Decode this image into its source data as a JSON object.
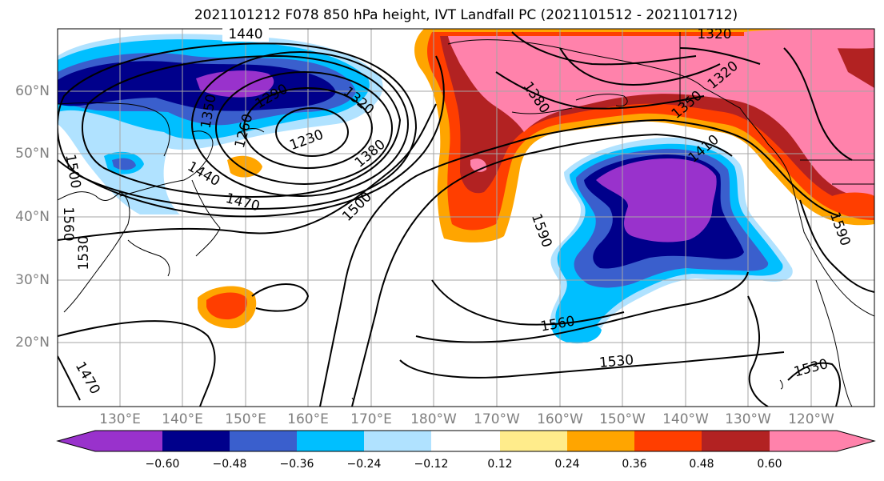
{
  "title": "2021101212 F078 850 hPa height, IVT Landfall PC (2021101512 - 2021101712)",
  "lat_labels": [
    "60°N",
    "50°N",
    "40°N",
    "30°N",
    "20°N"
  ],
  "lon_labels": [
    "130°E",
    "140°E",
    "150°E",
    "160°E",
    "170°E",
    "180°W",
    "170°W",
    "160°W",
    "150°W",
    "140°W",
    "130°W",
    "120°W"
  ],
  "contour_labels": [
    "1440",
    "1290",
    "1350",
    "1320",
    "1260",
    "1230",
    "1380",
    "1500",
    "1440",
    "1470",
    "1500",
    "1530",
    "1560",
    "1530",
    "1590",
    "1380",
    "1350",
    "1410",
    "1320",
    "1320",
    "1530",
    "1590",
    "1470",
    "1560"
  ],
  "colorbar": {
    "colors": [
      "#9932cc",
      "#00008b",
      "#3a5fcd",
      "#00bfff",
      "#b0e2ff",
      "#ffffff",
      "#ffec8b",
      "#ffa500",
      "#ff3e00",
      "#b22222",
      "#ff82ab"
    ],
    "tick_labels": [
      "−0.60",
      "−0.48",
      "−0.36",
      "−0.24",
      "−0.12",
      "0.12",
      "0.24",
      "0.36",
      "0.48",
      "0.60"
    ]
  }
}
